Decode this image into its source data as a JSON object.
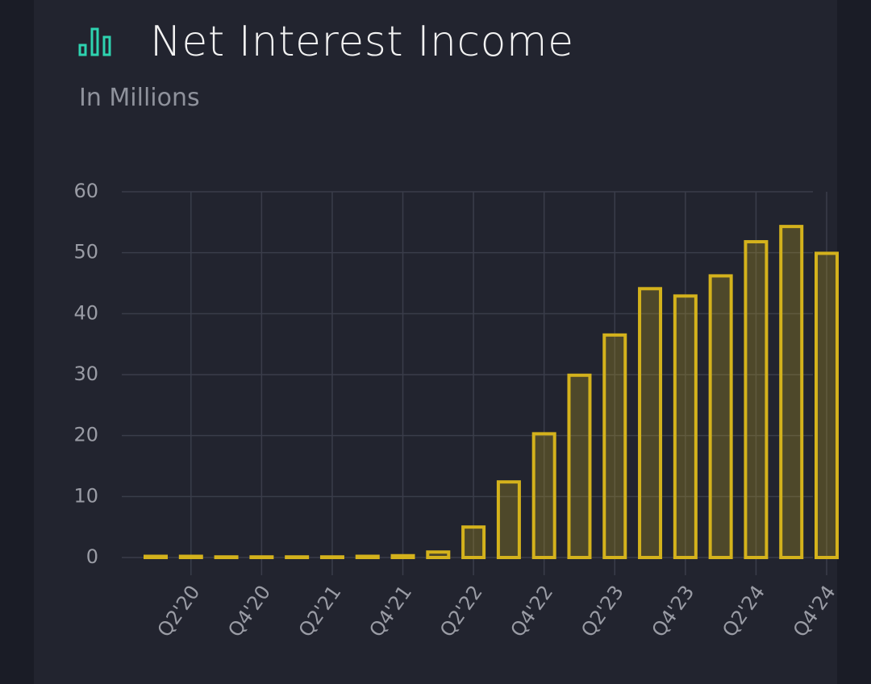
{
  "chart_data": {
    "type": "bar",
    "title": "Net Interest Income",
    "subtitle": "In Millions",
    "categories": [
      null,
      "Q2'20",
      null,
      "Q4'20",
      null,
      "Q2'21",
      null,
      "Q4'21",
      null,
      "Q2'22",
      null,
      "Q4'22",
      null,
      "Q2'23",
      null,
      "Q4'23",
      null,
      "Q2'24",
      null,
      "Q4'24"
    ],
    "values": [
      0.2,
      0.2,
      0.1,
      0.1,
      0.1,
      0.1,
      0.2,
      0.3,
      0.9,
      5.0,
      12.4,
      20.3,
      29.9,
      36.5,
      44.1,
      42.9,
      46.2,
      51.8,
      54.3,
      49.9
    ],
    "color": "#d4b21c",
    "ylim": [
      0,
      60
    ],
    "yticks": [
      0,
      10,
      20,
      30,
      40,
      50,
      60
    ],
    "grid": true
  }
}
